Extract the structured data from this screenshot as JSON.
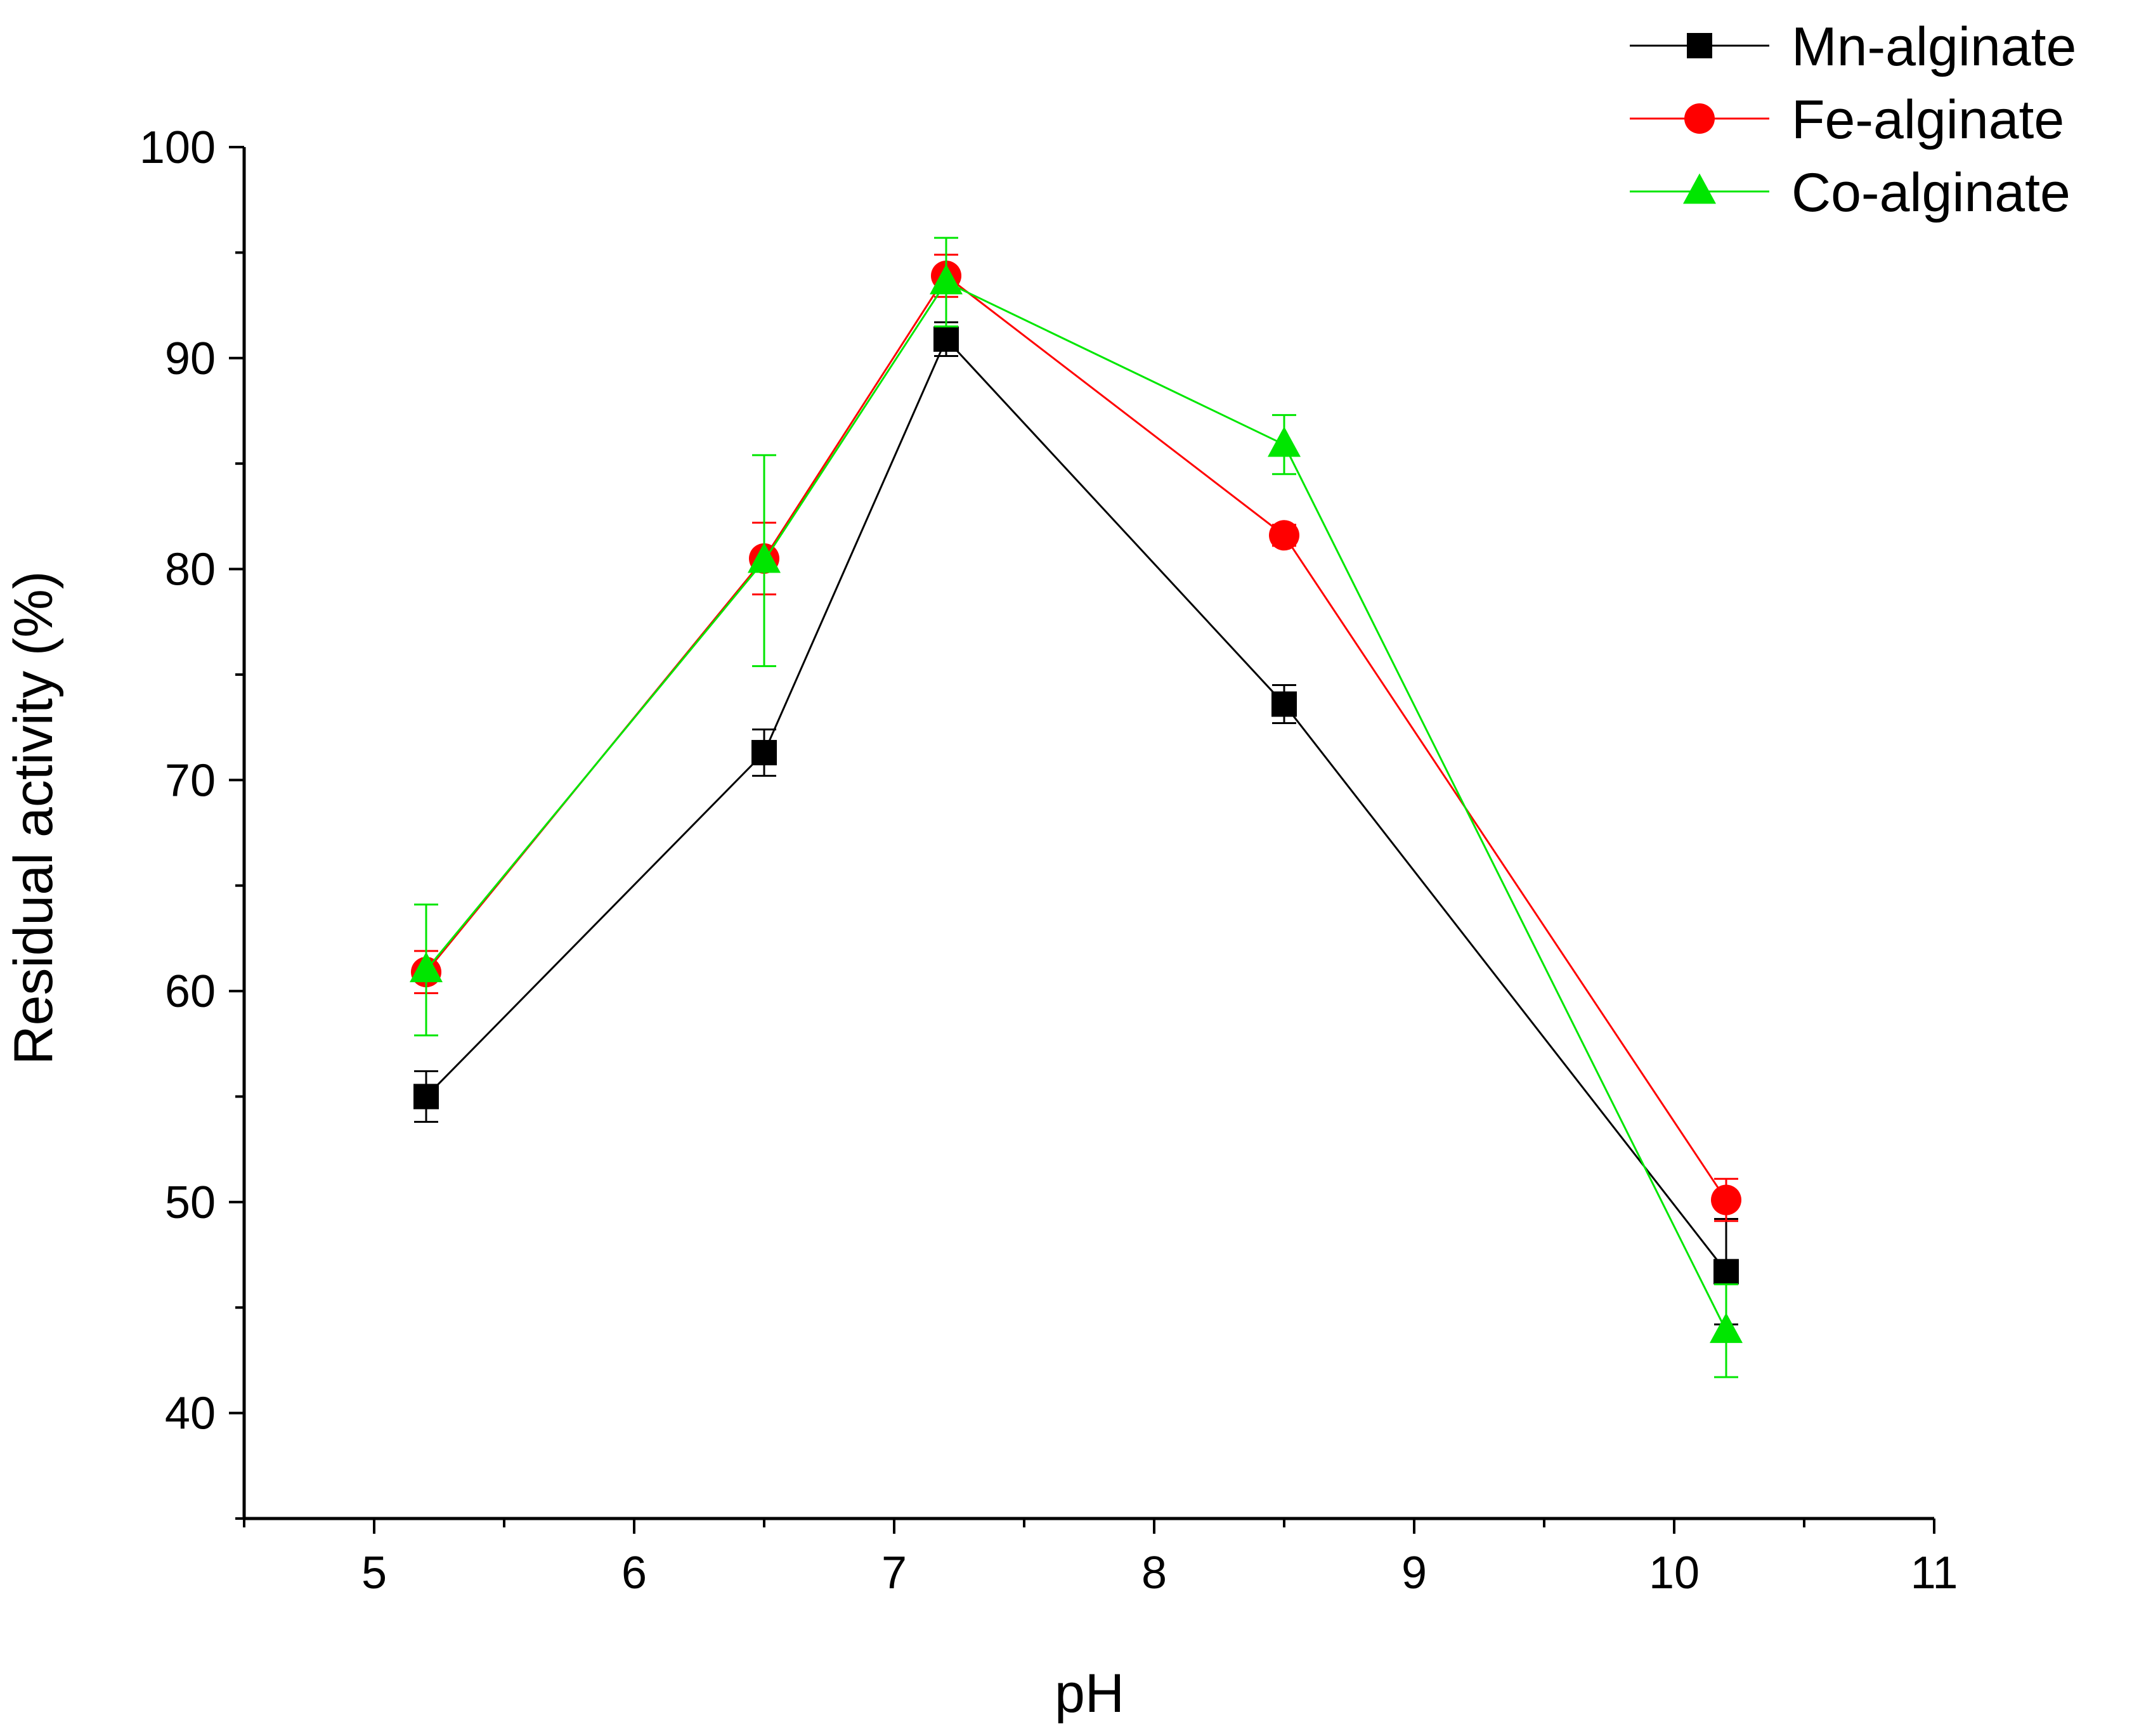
{
  "chart_data": {
    "type": "line",
    "title": "",
    "xlabel": "pH",
    "ylabel": "Residual activity (%)",
    "xlim": [
      4.5,
      11
    ],
    "ylim": [
      35,
      100
    ],
    "x_ticks": [
      5,
      6,
      7,
      8,
      9,
      10,
      11
    ],
    "y_ticks": [
      40,
      50,
      60,
      70,
      80,
      90,
      100
    ],
    "grid": false,
    "legend_position": "top-right",
    "x": [
      5.2,
      6.5,
      7.2,
      8.5,
      10.2
    ],
    "series": [
      {
        "name": "Mn-alginate",
        "color": "#000000",
        "marker": "square",
        "values": [
          55.0,
          71.3,
          90.9,
          73.6,
          46.7
        ],
        "errors": [
          1.2,
          1.1,
          0.8,
          0.9,
          2.5
        ]
      },
      {
        "name": "Fe-alginate",
        "color": "#ff0000",
        "marker": "circle",
        "values": [
          60.9,
          80.5,
          93.9,
          81.6,
          50.1
        ],
        "errors": [
          1.0,
          1.7,
          1.0,
          0.5,
          1.0
        ]
      },
      {
        "name": "Co-alginate",
        "color": "#00e600",
        "marker": "triangle",
        "values": [
          61.0,
          80.4,
          93.6,
          85.9,
          43.9
        ],
        "errors": [
          3.1,
          5.0,
          2.1,
          1.4,
          2.2
        ]
      }
    ]
  }
}
